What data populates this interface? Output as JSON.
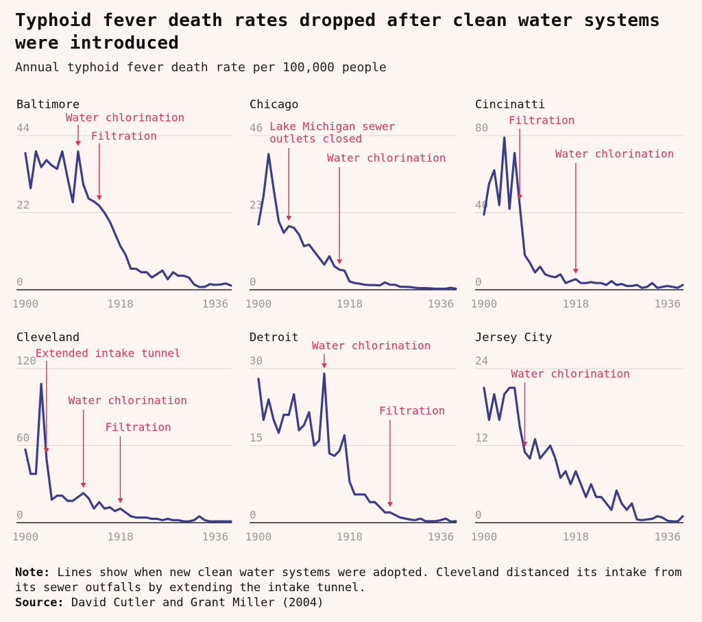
{
  "title": "Typhoid fever death rates dropped after clean water systems were introduced",
  "subtitle": "Annual typhoid fever death rate per 100,000 people",
  "colors": {
    "line": "#3a3d8c",
    "annotation": "#d9325a",
    "grid": "#dcd6d3",
    "tick": "#999999",
    "background": "#fdf5f2"
  },
  "footer": {
    "note_label": "Note:",
    "note_text": "Lines show when new clean water systems were adopted. Cleveland distanced its intake from its sewer outfalls by extending the intake tunnel.",
    "source_label": "Source:",
    "source_text": "David Cutler and Grant Miller (2004)"
  },
  "chart_data": [
    {
      "type": "line",
      "title": "Baltimore",
      "x": [
        1900,
        1901,
        1902,
        1903,
        1904,
        1905,
        1906,
        1907,
        1908,
        1909,
        1910,
        1911,
        1912,
        1913,
        1914,
        1915,
        1916,
        1917,
        1918,
        1919,
        1920,
        1921,
        1922,
        1923,
        1924,
        1925,
        1926,
        1927,
        1928,
        1929,
        1930,
        1931,
        1932,
        1933,
        1934,
        1935,
        1936,
        1937,
        1938,
        1939
      ],
      "values": [
        39,
        29,
        39.5,
        35,
        37,
        35.5,
        34.5,
        39.5,
        32,
        25,
        39.5,
        30,
        26,
        25.2,
        24,
        22,
        19.5,
        16,
        12.5,
        10,
        6,
        6,
        5,
        5,
        3.5,
        4.5,
        5.5,
        3,
        5,
        4,
        4,
        3.5,
        1.5,
        0.8,
        0.8,
        1.6,
        1.4,
        1.5,
        1.8,
        1.2
      ],
      "ylim": [
        0,
        44
      ],
      "yticks": [
        "44",
        "22",
        "0"
      ],
      "xticks": [
        "1900",
        "1918",
        "1936"
      ],
      "annotations": [
        {
          "label": "Water chlorination",
          "year": 1910
        },
        {
          "label": "Filtration",
          "year": 1914
        }
      ]
    },
    {
      "type": "line",
      "title": "Chicago",
      "x": [
        1900,
        1901,
        1902,
        1903,
        1904,
        1905,
        1906,
        1907,
        1908,
        1909,
        1910,
        1911,
        1912,
        1913,
        1914,
        1915,
        1916,
        1917,
        1918,
        1919,
        1920,
        1921,
        1922,
        1923,
        1924,
        1925,
        1926,
        1927,
        1928,
        1929,
        1930,
        1931,
        1932,
        1933,
        1934,
        1935,
        1936,
        1937,
        1938,
        1939
      ],
      "values": [
        19.5,
        28,
        40.5,
        30,
        20.5,
        17,
        19,
        18.5,
        16.5,
        13,
        13.5,
        11.5,
        9.5,
        7.5,
        10,
        7,
        6,
        5.7,
        2.5,
        2,
        1.8,
        1.5,
        1.4,
        1.4,
        1.3,
        2.2,
        1.5,
        1.5,
        0.9,
        0.9,
        0.8,
        0.6,
        0.5,
        0.5,
        0.4,
        0.3,
        0.3,
        0.3,
        0.6,
        0.3
      ],
      "ylim": [
        0,
        46
      ],
      "yticks": [
        "46",
        "23",
        "0"
      ],
      "xticks": [
        "1900",
        "1918",
        "1936"
      ],
      "annotations": [
        {
          "label": "Lake Michigan sewer",
          "label2": "outlets closed",
          "year": 1906
        },
        {
          "label": "Water chlorination",
          "year": 1916
        }
      ]
    },
    {
      "type": "line",
      "title": "Cincinatti",
      "x": [
        1900,
        1901,
        1902,
        1903,
        1904,
        1905,
        1906,
        1907,
        1908,
        1909,
        1910,
        1911,
        1912,
        1913,
        1914,
        1915,
        1916,
        1917,
        1918,
        1919,
        1920,
        1921,
        1922,
        1923,
        1924,
        1925,
        1926,
        1927,
        1928,
        1929,
        1930,
        1931,
        1932,
        1933,
        1934,
        1935,
        1936,
        1937,
        1938,
        1939
      ],
      "values": [
        39,
        55,
        62,
        44,
        79,
        42,
        71,
        44,
        18,
        14,
        9,
        12,
        8,
        7,
        6.5,
        8,
        3.5,
        4.5,
        5.5,
        3.5,
        3.5,
        4,
        3.5,
        3.5,
        2.5,
        4.5,
        2.5,
        3,
        2,
        2,
        2.5,
        1,
        1.5,
        3.5,
        1,
        1.5,
        2,
        1.5,
        1,
        2.5
      ],
      "ylim": [
        0,
        80
      ],
      "yticks": [
        "80",
        "40",
        "0"
      ],
      "xticks": [
        "1900",
        "1918",
        "1936"
      ],
      "annotations": [
        {
          "label": "Filtration",
          "year": 1907
        },
        {
          "label": "Water chlorination",
          "year": 1918
        }
      ]
    },
    {
      "type": "line",
      "title": "Cleveland",
      "x": [
        1900,
        1901,
        1902,
        1903,
        1904,
        1905,
        1906,
        1907,
        1908,
        1909,
        1910,
        1911,
        1912,
        1913,
        1914,
        1915,
        1916,
        1917,
        1918,
        1919,
        1920,
        1921,
        1922,
        1923,
        1924,
        1925,
        1926,
        1927,
        1928,
        1929,
        1930,
        1931,
        1932,
        1933,
        1934,
        1935,
        1936,
        1937,
        1938,
        1939
      ],
      "values": [
        57,
        38,
        38,
        108,
        50,
        18,
        21,
        21,
        17,
        17,
        20,
        23,
        19,
        11,
        16,
        11,
        12,
        9,
        11,
        8,
        5,
        4,
        4,
        4,
        3,
        3,
        2,
        3,
        2,
        2,
        1,
        1,
        2,
        5,
        2,
        1,
        1,
        1,
        1,
        1
      ],
      "ylim": [
        0,
        120
      ],
      "yticks": [
        "120",
        "60",
        "0"
      ],
      "xticks": [
        "1900",
        "1918",
        "1936"
      ],
      "annotations": [
        {
          "label": "Extended intake tunnel",
          "year": 1904
        },
        {
          "label": "Water chlorination",
          "year": 1911
        },
        {
          "label": "Filtration",
          "year": 1918
        }
      ]
    },
    {
      "type": "line",
      "title": "Detroit",
      "x": [
        1900,
        1901,
        1902,
        1903,
        1904,
        1905,
        1906,
        1907,
        1908,
        1909,
        1910,
        1911,
        1912,
        1913,
        1914,
        1915,
        1916,
        1917,
        1918,
        1919,
        1920,
        1921,
        1922,
        1923,
        1924,
        1925,
        1926,
        1927,
        1928,
        1929,
        1930,
        1931,
        1932,
        1933,
        1934,
        1935,
        1936,
        1937,
        1938,
        1939
      ],
      "values": [
        28,
        20,
        24,
        20,
        17.5,
        21,
        21,
        25,
        18,
        19,
        21.5,
        15,
        16,
        29,
        13.5,
        13,
        14,
        17,
        8,
        5.5,
        5.5,
        5.5,
        4,
        4,
        3,
        2,
        2,
        1.5,
        1,
        0.8,
        0.6,
        0.5,
        0.8,
        0.3,
        0.3,
        0.3,
        0.5,
        0.8,
        0.2,
        0.3
      ],
      "ylim": [
        0,
        30
      ],
      "yticks": [
        "30",
        "15",
        "0"
      ],
      "xticks": [
        "1900",
        "1918",
        "1936"
      ],
      "annotations": [
        {
          "label": "Water chlorination",
          "year": 1913
        },
        {
          "label": "Filtration",
          "year": 1926
        }
      ]
    },
    {
      "type": "line",
      "title": "Jersey City",
      "x": [
        1900,
        1901,
        1902,
        1903,
        1904,
        1905,
        1906,
        1907,
        1908,
        1909,
        1910,
        1911,
        1912,
        1913,
        1914,
        1915,
        1916,
        1917,
        1918,
        1919,
        1920,
        1921,
        1922,
        1923,
        1924,
        1925,
        1926,
        1927,
        1928,
        1929,
        1930,
        1931,
        1932,
        1933,
        1934,
        1935,
        1936,
        1937,
        1938,
        1939
      ],
      "values": [
        21,
        16,
        20,
        16,
        20,
        21,
        21,
        15,
        11,
        10,
        13,
        10,
        11,
        12,
        10,
        7,
        8,
        6,
        8,
        6,
        4,
        6,
        4,
        4,
        3,
        2,
        5,
        3,
        2,
        3,
        0.5,
        0.4,
        0.5,
        0.6,
        1,
        0.8,
        0.3,
        0.2,
        0.2,
        1
      ],
      "ylim": [
        0,
        24
      ],
      "yticks": [
        "24",
        "12",
        "0"
      ],
      "xticks": [
        "1900",
        "1918",
        "1936"
      ],
      "annotations": [
        {
          "label": "Water chlorination",
          "year": 1908
        }
      ]
    }
  ]
}
